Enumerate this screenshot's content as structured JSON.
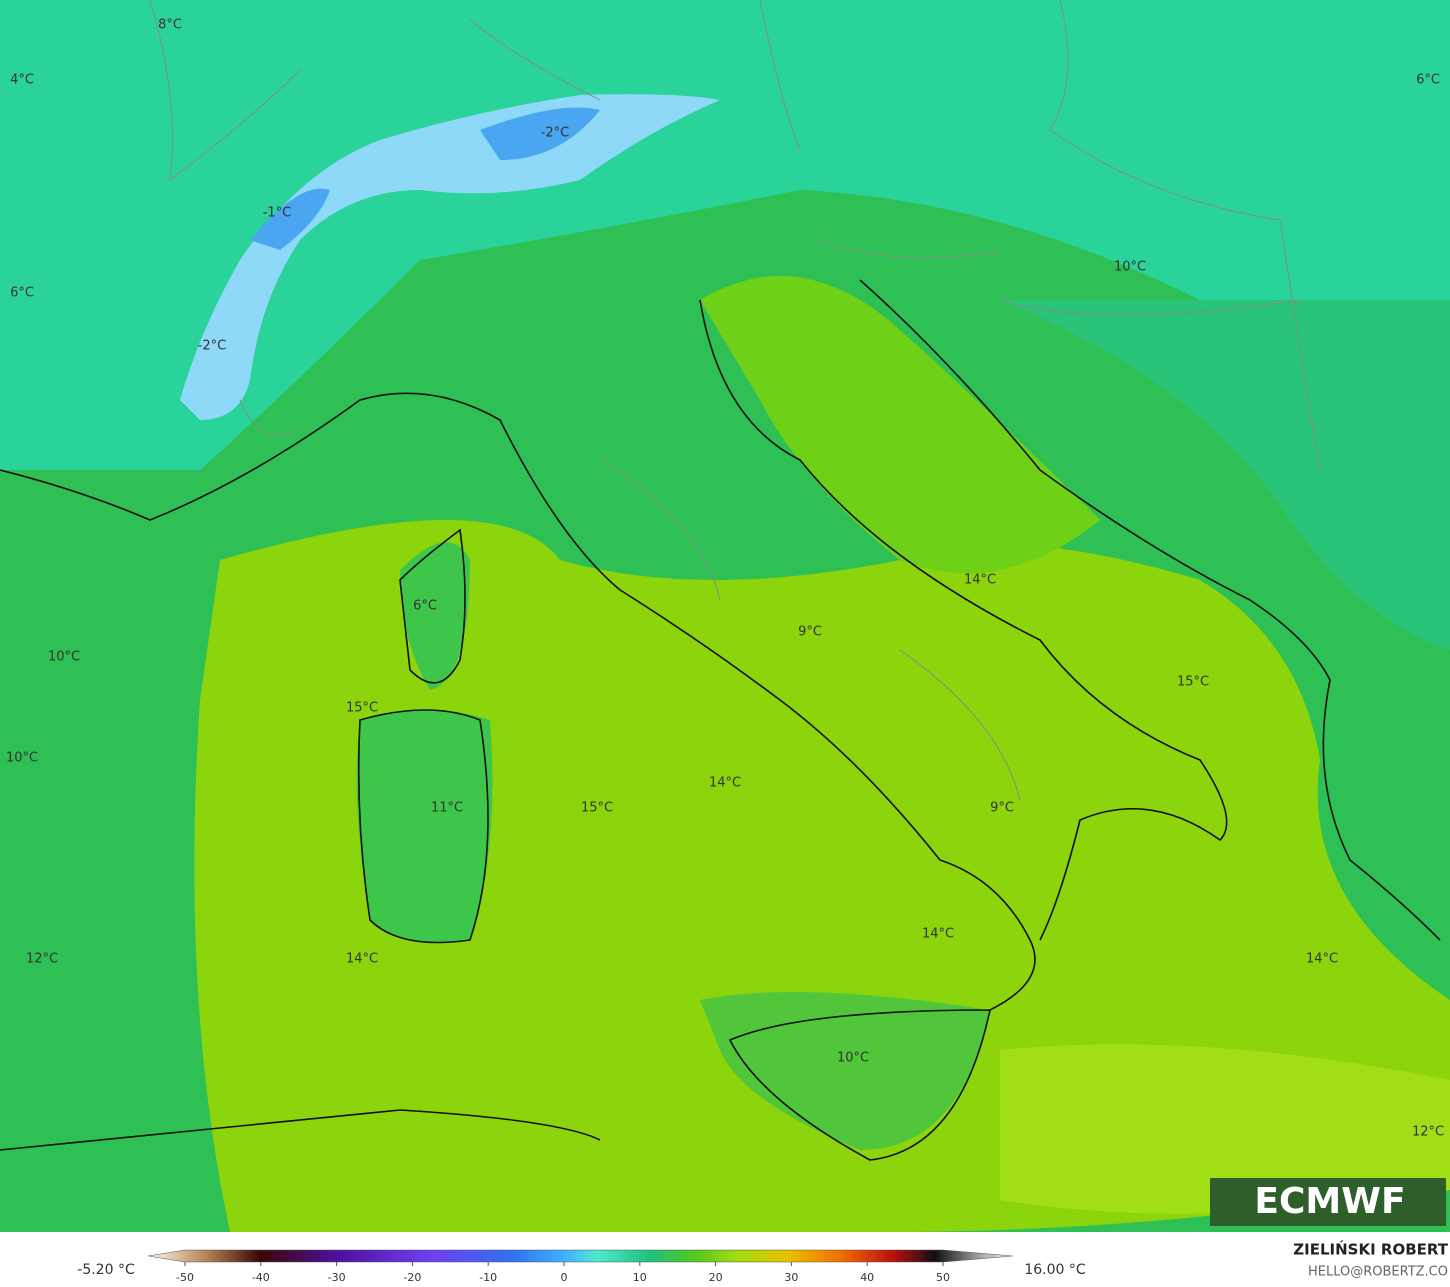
{
  "map": {
    "labels": [
      "8°C",
      "4°C",
      "6°C",
      "-2°C",
      "-1°C",
      "6°C",
      "10°C",
      "-2°C",
      "14°C",
      "6°C",
      "10°C",
      "9°C",
      "15°C",
      "15°C",
      "10°C",
      "14°C",
      "15°C",
      "11°C",
      "9°C",
      "14°C",
      "12°C",
      "14°C",
      "14°C",
      "10°C",
      "12°C"
    ],
    "logo": "ECMWF"
  },
  "colorbar": {
    "min_label": "-5.20 °C",
    "max_label": "16.00 °C",
    "ticks": [
      -50,
      -40,
      -30,
      -20,
      -10,
      0,
      10,
      20,
      30,
      40,
      50
    ]
  },
  "credit": {
    "name": "ZIELIŃSKI ROBERT",
    "email": "HELLO@ROBERTZ.CO"
  }
}
